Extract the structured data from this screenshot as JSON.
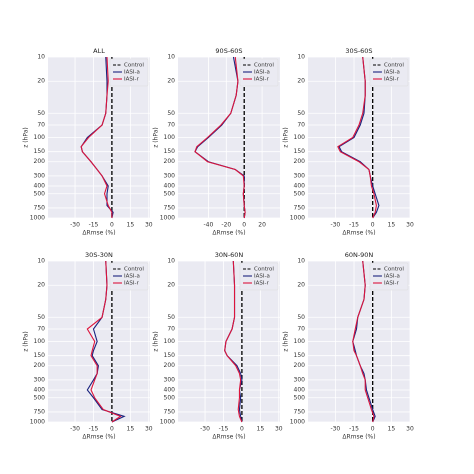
{
  "chart_data": [
    {
      "type": "line",
      "title": "ALL",
      "xlabel": "ΔRmse (%)",
      "ylabel": "z (hPa)",
      "log_y": true,
      "grid": true,
      "legend": "upper right",
      "y": [
        10,
        20,
        30,
        50,
        70,
        100,
        130,
        150,
        200,
        250,
        300,
        400,
        500,
        700,
        850,
        1000
      ],
      "series": [
        {
          "name": "Control",
          "color": "#000000",
          "dashed": true,
          "values": [
            0,
            0,
            0,
            0,
            0,
            0,
            0,
            0,
            0,
            0,
            0,
            0,
            0,
            0,
            0,
            0
          ]
        },
        {
          "name": "IASI-a",
          "color": "#1a237e",
          "values": [
            -5,
            -4,
            -4,
            -5,
            -8,
            -20,
            -25,
            -24,
            -17,
            -12,
            -8,
            -3,
            -4,
            -4,
            1,
            0
          ]
        },
        {
          "name": "IASI-r",
          "color": "#dc143c",
          "values": [
            -4,
            -3,
            -4,
            -5,
            -8,
            -19,
            -25,
            -24,
            -17,
            -12,
            -8,
            -4,
            -6,
            -3,
            0,
            0
          ]
        }
      ],
      "xlim": [
        -52,
        31
      ],
      "xticks": [
        -30,
        -15,
        0,
        15,
        30
      ],
      "ylim": [
        1000,
        10
      ],
      "yticks": [
        10,
        20,
        50,
        70,
        100,
        150,
        200,
        300,
        400,
        500,
        750,
        1000
      ]
    },
    {
      "type": "line",
      "title": "90S-60S",
      "xlabel": "ΔRmse (%)",
      "ylabel": "z (hPa)",
      "log_y": true,
      "grid": true,
      "legend": "upper right",
      "y": [
        10,
        20,
        30,
        50,
        70,
        100,
        130,
        150,
        200,
        250,
        300,
        400,
        500,
        700,
        850,
        1000
      ],
      "series": [
        {
          "name": "Control",
          "color": "#000000",
          "dashed": true,
          "values": [
            0,
            0,
            0,
            0,
            0,
            0,
            0,
            0,
            0,
            0,
            0,
            0,
            0,
            0,
            0,
            0
          ]
        },
        {
          "name": "IASI-a",
          "color": "#1a237e",
          "values": [
            -12,
            -7,
            -9,
            -15,
            -25,
            -40,
            -52,
            -55,
            -40,
            -10,
            0,
            0,
            -1,
            0,
            1,
            0
          ]
        },
        {
          "name": "IASI-r",
          "color": "#dc143c",
          "values": [
            -10,
            -7,
            -9,
            -15,
            -26,
            -41,
            -53,
            -55,
            -41,
            -10,
            -1,
            0,
            -1,
            0,
            1,
            0
          ]
        }
      ],
      "xlim": [
        -74,
        40
      ],
      "xticks": [
        -40,
        -20,
        0,
        20
      ],
      "ylim": [
        1000,
        10
      ],
      "yticks": [
        10,
        20,
        50,
        70,
        100,
        150,
        200,
        300,
        400,
        500,
        750,
        1000
      ]
    },
    {
      "type": "line",
      "title": "30S-60S",
      "xlabel": "ΔRmse (%)",
      "ylabel": "z (hPa)",
      "log_y": true,
      "grid": true,
      "legend": "upper right",
      "y": [
        10,
        20,
        30,
        50,
        70,
        100,
        130,
        150,
        200,
        250,
        300,
        400,
        500,
        700,
        850,
        1000
      ],
      "series": [
        {
          "name": "Control",
          "color": "#000000",
          "dashed": true,
          "values": [
            0,
            0,
            0,
            0,
            0,
            0,
            0,
            0,
            0,
            0,
            0,
            0,
            0,
            0,
            0,
            0
          ]
        },
        {
          "name": "IASI-a",
          "color": "#1a237e",
          "values": [
            -8,
            -6,
            -6,
            -7,
            -10,
            -15,
            -27,
            -25,
            -10,
            -3,
            -2,
            0,
            2,
            5,
            3,
            0
          ]
        },
        {
          "name": "IASI-r",
          "color": "#dc143c",
          "values": [
            -8,
            -6,
            -6,
            -8,
            -11,
            -16,
            -28,
            -26,
            -11,
            -3,
            -2,
            -1,
            1,
            3,
            2,
            0
          ]
        }
      ],
      "xlim": [
        -52,
        30
      ],
      "xticks": [
        -30,
        -15,
        0,
        15,
        30
      ],
      "ylim": [
        1000,
        10
      ],
      "yticks": [
        10,
        20,
        50,
        70,
        100,
        150,
        200,
        300,
        400,
        500,
        750,
        1000
      ]
    },
    {
      "type": "line",
      "title": "30S-30N",
      "xlabel": "ΔRmse (%)",
      "ylabel": "z (hPa)",
      "log_y": true,
      "grid": true,
      "legend": "upper right",
      "y": [
        10,
        20,
        30,
        50,
        70,
        100,
        130,
        150,
        200,
        250,
        300,
        400,
        500,
        700,
        850,
        1000
      ],
      "series": [
        {
          "name": "Control",
          "color": "#000000",
          "dashed": true,
          "values": [
            0,
            0,
            0,
            0,
            0,
            0,
            0,
            0,
            0,
            0,
            0,
            0,
            0,
            0,
            0,
            0
          ]
        },
        {
          "name": "IASI-a",
          "color": "#1a237e",
          "values": [
            -5,
            -4,
            -5,
            -8,
            -15,
            -12,
            -15,
            -16,
            -11,
            -12,
            -15,
            -20,
            -15,
            -8,
            10,
            0
          ]
        },
        {
          "name": "IASI-r",
          "color": "#dc143c",
          "values": [
            -5,
            -4,
            -5,
            -8,
            -20,
            -14,
            -16,
            -17,
            -12,
            -12,
            -14,
            -17,
            -14,
            -7,
            7,
            0
          ]
        }
      ],
      "xlim": [
        -52,
        31
      ],
      "xticks": [
        -30,
        -15,
        0,
        15,
        30
      ],
      "ylim": [
        1000,
        10
      ],
      "yticks": [
        10,
        20,
        50,
        70,
        100,
        150,
        200,
        300,
        400,
        500,
        750,
        1000
      ]
    },
    {
      "type": "line",
      "title": "30N-60N",
      "xlabel": "ΔRmse (%)",
      "ylabel": "z (hPa)",
      "log_y": true,
      "grid": true,
      "legend": "upper right",
      "y": [
        10,
        20,
        30,
        50,
        70,
        100,
        130,
        150,
        200,
        250,
        300,
        400,
        500,
        700,
        850,
        1000
      ],
      "series": [
        {
          "name": "Control",
          "color": "#000000",
          "dashed": true,
          "values": [
            0,
            0,
            0,
            0,
            0,
            0,
            0,
            0,
            0,
            0,
            0,
            0,
            0,
            0,
            0,
            0
          ]
        },
        {
          "name": "IASI-a",
          "color": "#1a237e",
          "values": [
            -7,
            -6,
            -6,
            -6,
            -8,
            -13,
            -14,
            -12,
            -4,
            -1,
            0,
            -2,
            -1,
            -2,
            -1,
            0
          ]
        },
        {
          "name": "IASI-r",
          "color": "#dc143c",
          "values": [
            -7,
            -6,
            -6,
            -6,
            -8,
            -13,
            -14,
            -12,
            -5,
            -2,
            -1,
            -2,
            -2,
            -3,
            -2,
            0
          ]
        }
      ],
      "xlim": [
        -52,
        31
      ],
      "xticks": [
        -30,
        -15,
        0,
        15,
        30
      ],
      "ylim": [
        1000,
        10
      ],
      "yticks": [
        10,
        20,
        50,
        70,
        100,
        150,
        200,
        300,
        400,
        500,
        750,
        1000
      ]
    },
    {
      "type": "line",
      "title": "60N-90N",
      "xlabel": "ΔRmse (%)",
      "ylabel": "z (hPa)",
      "log_y": true,
      "grid": true,
      "legend": "upper right",
      "y": [
        10,
        20,
        30,
        50,
        70,
        100,
        130,
        150,
        200,
        250,
        300,
        400,
        500,
        700,
        850,
        1000
      ],
      "series": [
        {
          "name": "Control",
          "color": "#000000",
          "dashed": true,
          "values": [
            0,
            0,
            0,
            0,
            0,
            0,
            0,
            0,
            0,
            0,
            0,
            0,
            0,
            0,
            0,
            0
          ]
        },
        {
          "name": "IASI-a",
          "color": "#1a237e",
          "values": [
            -8,
            -6,
            -7,
            -12,
            -13,
            -16,
            -14,
            -13,
            -10,
            -7,
            -6,
            -5,
            -3,
            0,
            2,
            0
          ]
        },
        {
          "name": "IASI-r",
          "color": "#dc143c",
          "values": [
            -8,
            -6,
            -7,
            -12,
            -14,
            -16,
            -15,
            -13,
            -10,
            -8,
            -6,
            -6,
            -4,
            -1,
            1,
            0
          ]
        }
      ],
      "xlim": [
        -52,
        30
      ],
      "xticks": [
        -30,
        -15,
        0,
        15,
        30
      ],
      "ylim": [
        1000,
        10
      ],
      "yticks": [
        10,
        20,
        50,
        70,
        100,
        150,
        200,
        300,
        400,
        500,
        750,
        1000
      ]
    }
  ]
}
